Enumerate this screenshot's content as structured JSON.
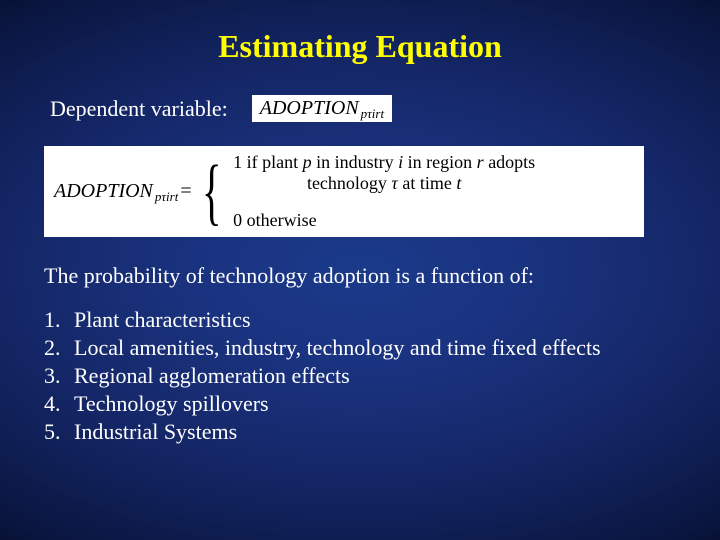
{
  "colors": {
    "title": "#ffff00",
    "text": "#ffffff",
    "math_bg": "#ffffff",
    "math_text": "#000000",
    "bg_center": "#1a3a8a",
    "bg_edge": "#040920"
  },
  "title": "Estimating Equation",
  "depvar_label": "Dependent variable:",
  "adoption_word": "ADOPTION",
  "adoption_sub": "pτirt",
  "eq_eq": "=",
  "case1_prefix": "1 if plant ",
  "case1_p": "p",
  "case1_mid1": " in industry ",
  "case1_i": "i",
  "case1_mid2": " in region ",
  "case1_r": "r",
  "case1_mid3": " adopts",
  "case1_line2a": "technology ",
  "case1_tau": "τ",
  "case1_line2b": " at time ",
  "case1_t": "t",
  "case0": "0 otherwise",
  "prob_text": "The probability of technology adoption is a function of:",
  "items": [
    "Plant characteristics",
    "Local amenities, industry, technology and time fixed effects",
    "Regional agglomeration effects",
    "Technology spillovers",
    "Industrial Systems"
  ],
  "nums": [
    "1.",
    "2.",
    "3.",
    "4.",
    "5."
  ]
}
